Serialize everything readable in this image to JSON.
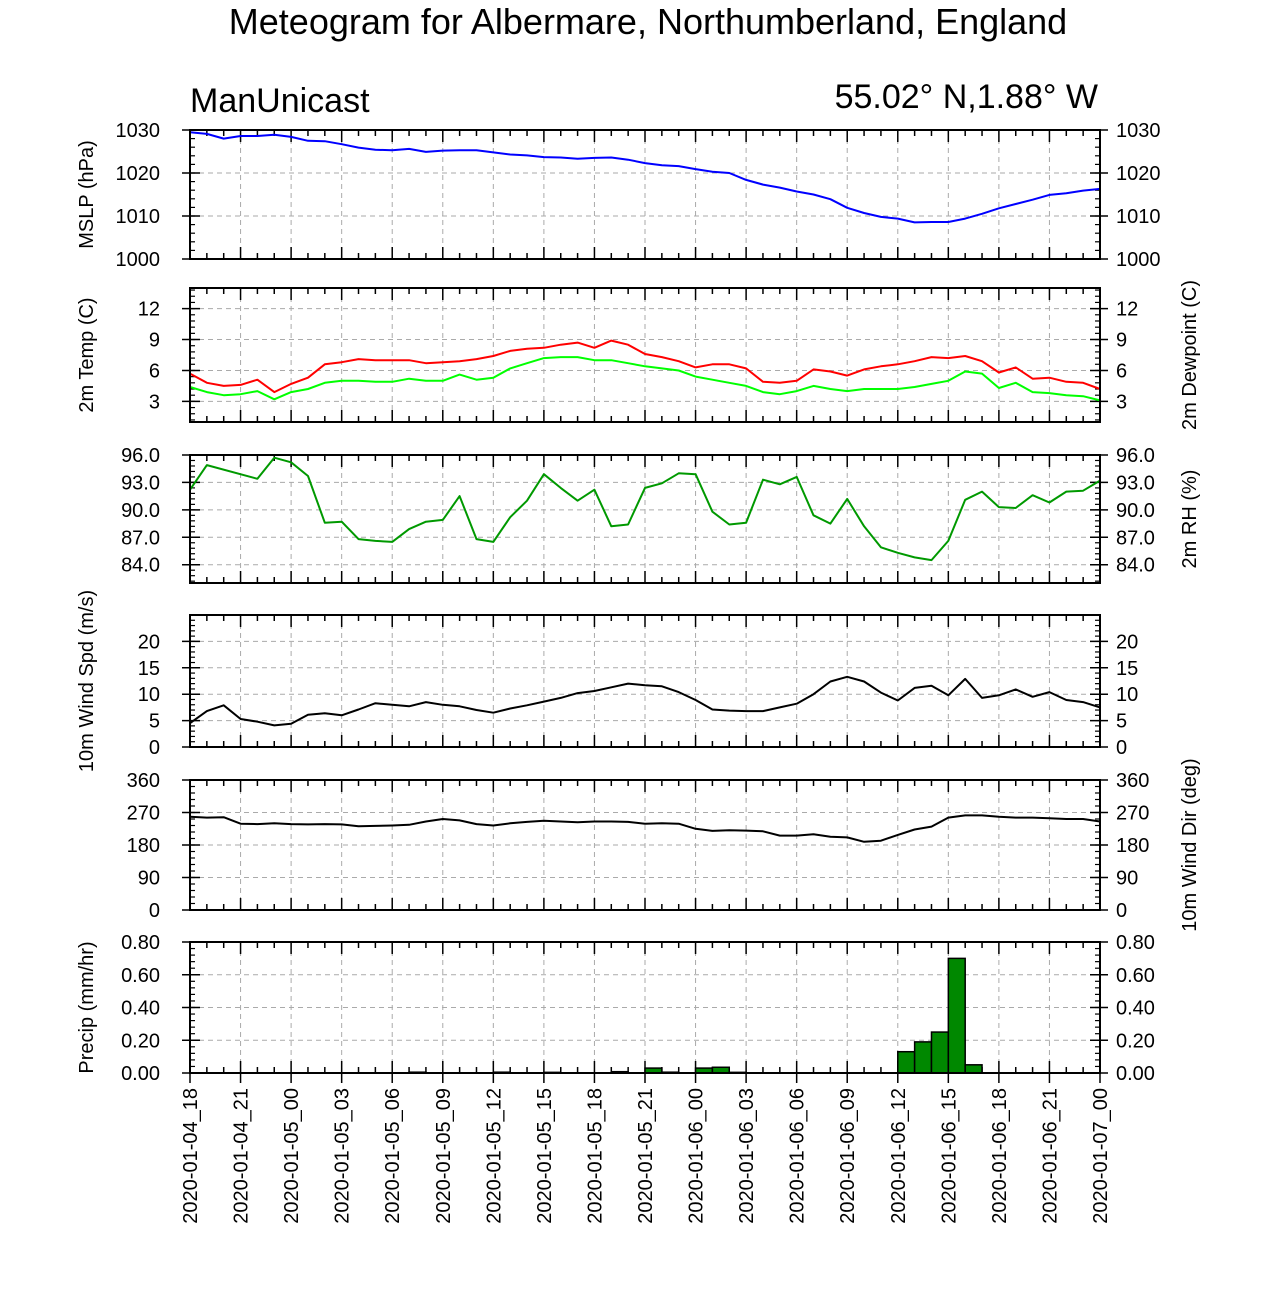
{
  "title": "Meteogram for Albermare, Northumberland, England",
  "model_label": "ManUnicast",
  "location_label": "55.02° N,1.88° W",
  "time_labels": [
    "2020-01-04_18",
    "2020-01-04_21",
    "2020-01-05_00",
    "2020-01-05_03",
    "2020-01-05_06",
    "2020-01-05_09",
    "2020-01-05_12",
    "2020-01-05_15",
    "2020-01-05_18",
    "2020-01-05_21",
    "2020-01-06_00",
    "2020-01-06_03",
    "2020-01-06_06",
    "2020-01-06_09",
    "2020-01-06_12",
    "2020-01-06_15",
    "2020-01-06_18",
    "2020-01-06_21",
    "2020-01-07_00"
  ],
  "colors": {
    "mslp": "#0000ff",
    "temp": "#ff0000",
    "dewpoint": "#00ff00",
    "rh": "#009900",
    "wind": "#000000",
    "precip_fill": "#008800",
    "grid": "#aaaaaa"
  },
  "chart_data": [
    {
      "type": "line",
      "ylabel_left": "MSLP (hPa)",
      "ylabel_right": "",
      "ylim": [
        1000,
        1030
      ],
      "ticks": [
        1000,
        1010,
        1020,
        1030
      ],
      "tick_labels": [
        "1000",
        "1010",
        "1020",
        "1030"
      ],
      "right_ticks": true,
      "x_hours": [
        0,
        1,
        2,
        3,
        4,
        5,
        6,
        7,
        8,
        9,
        10,
        11,
        12,
        13,
        14,
        15,
        16,
        17,
        18,
        19,
        20,
        21,
        22,
        23,
        24,
        25,
        26,
        27,
        28,
        29,
        30,
        31,
        32,
        33,
        34,
        35,
        36,
        37,
        38,
        39,
        40,
        41,
        42,
        43,
        44,
        45,
        46,
        47,
        48,
        49,
        50,
        51,
        52,
        53,
        54
      ],
      "series": [
        {
          "values": [
            1029.5,
            1029.1,
            1028.0,
            1028.6,
            1028.6,
            1028.9,
            1028.4,
            1027.5,
            1027.4,
            1026.7,
            1025.9,
            1025.4,
            1025.3,
            1025.6,
            1024.9,
            1025.2,
            1025.3,
            1025.3,
            1024.8,
            1024.3,
            1024.1,
            1023.7,
            1023.6,
            1023.3,
            1023.5,
            1023.6,
            1023.1,
            1022.3,
            1021.8,
            1021.6,
            1020.9,
            1020.3,
            1020.0,
            1018.4,
            1017.3,
            1016.6,
            1015.7,
            1015.0,
            1013.9,
            1011.9,
            1010.7,
            1009.8,
            1009.4,
            1008.5,
            1008.6,
            1008.6,
            1009.4,
            1010.5,
            1011.8,
            1012.8,
            1013.8,
            1014.9,
            1015.3,
            1015.9,
            1016.3
          ]
        }
      ]
    },
    {
      "type": "line",
      "ylabel_left": "2m Temp (C)",
      "ylabel_right": "2m Dewpoint (C)",
      "ylim": [
        1,
        14
      ],
      "ticks": [
        3,
        6,
        9,
        12
      ],
      "tick_labels": [
        "3",
        "6",
        "9",
        "12"
      ],
      "right_ticks": true,
      "x_hours": [
        0,
        1,
        2,
        3,
        4,
        5,
        6,
        7,
        8,
        9,
        10,
        11,
        12,
        13,
        14,
        15,
        16,
        17,
        18,
        19,
        20,
        21,
        22,
        23,
        24,
        25,
        26,
        27,
        28,
        29,
        30,
        31,
        32,
        33,
        34,
        35,
        36,
        37,
        38,
        39,
        40,
        41,
        42,
        43,
        44,
        45,
        46,
        47,
        48,
        49,
        50,
        51,
        52,
        53,
        54
      ],
      "series": [
        {
          "values": [
            5.7,
            4.8,
            4.5,
            4.6,
            5.1,
            3.9,
            4.7,
            5.3,
            6.6,
            6.8,
            7.1,
            7.0,
            7.0,
            7.0,
            6.7,
            6.8,
            6.9,
            7.1,
            7.4,
            7.9,
            8.1,
            8.2,
            8.5,
            8.7,
            8.2,
            8.9,
            8.5,
            7.6,
            7.3,
            6.9,
            6.3,
            6.6,
            6.6,
            6.2,
            4.9,
            4.8,
            5.0,
            6.1,
            5.9,
            5.5,
            6.1,
            6.4,
            6.6,
            6.9,
            7.3,
            7.2,
            7.4,
            6.9,
            5.8,
            6.3,
            5.2,
            5.3,
            4.9,
            4.8,
            4.2
          ]
        },
        {
          "values": [
            4.4,
            3.9,
            3.6,
            3.7,
            4.0,
            3.2,
            3.9,
            4.2,
            4.8,
            5.0,
            5.0,
            4.9,
            4.9,
            5.2,
            5.0,
            5.0,
            5.6,
            5.1,
            5.3,
            6.2,
            6.7,
            7.2,
            7.3,
            7.3,
            7.0,
            7.0,
            6.7,
            6.4,
            6.2,
            6.0,
            5.4,
            5.1,
            4.8,
            4.5,
            3.9,
            3.7,
            4.0,
            4.5,
            4.2,
            4.0,
            4.2,
            4.2,
            4.2,
            4.4,
            4.7,
            5.0,
            5.9,
            5.7,
            4.3,
            4.8,
            3.9,
            3.8,
            3.6,
            3.5,
            3.1
          ]
        }
      ]
    },
    {
      "type": "line",
      "ylabel_left": "",
      "ylabel_right": "2m RH (%)",
      "ylim": [
        82,
        96
      ],
      "ticks": [
        84,
        87,
        90,
        93,
        96
      ],
      "tick_labels": [
        "84.0",
        "87.0",
        "90.0",
        "93.0",
        "96.0"
      ],
      "right_ticks": true,
      "x_hours": [
        0,
        1,
        4,
        5,
        6,
        7,
        8,
        9,
        10,
        11,
        12,
        13,
        14,
        15,
        16,
        17,
        18,
        19,
        20,
        21,
        22,
        23,
        24,
        25,
        26,
        27,
        28,
        29,
        30,
        31,
        32,
        33,
        34,
        35,
        36,
        37,
        38,
        39,
        40,
        41,
        42,
        43,
        44,
        45,
        46,
        47,
        48,
        49,
        50,
        51,
        52,
        53,
        54
      ],
      "series": [
        {
          "values": [
            92.2,
            94.9,
            93.4,
            95.7,
            95.2,
            93.7,
            88.6,
            88.7,
            86.8,
            86.6,
            86.5,
            87.9,
            88.7,
            88.9,
            91.5,
            86.8,
            86.5,
            89.2,
            91.0,
            93.9,
            92.4,
            91.0,
            92.2,
            88.2,
            88.4,
            92.4,
            92.9,
            94.0,
            93.9,
            89.8,
            88.4,
            88.6,
            93.3,
            92.8,
            93.6,
            89.4,
            88.5,
            91.2,
            88.2,
            85.9,
            85.3,
            84.8,
            84.5,
            86.6,
            91.1,
            92.0,
            90.3,
            90.2,
            91.6,
            90.8,
            92.0,
            92.1,
            93.2
          ]
        }
      ]
    },
    {
      "type": "line",
      "ylabel_left": "10m Wind Spd (m/s)",
      "ylabel_right": "",
      "ylim": [
        0,
        25
      ],
      "ticks": [
        0,
        5,
        10,
        15,
        20
      ],
      "tick_labels": [
        "0",
        "5",
        "10",
        "15",
        "20"
      ],
      "right_ticks": true,
      "x_hours": [
        0,
        1,
        2,
        3,
        4,
        5,
        6,
        7,
        8,
        9,
        10,
        11,
        12,
        13,
        14,
        15,
        16,
        17,
        18,
        19,
        20,
        21,
        22,
        23,
        24,
        25,
        26,
        27,
        28,
        29,
        30,
        31,
        32,
        33,
        34,
        35,
        36,
        37,
        38,
        39,
        40,
        41,
        42,
        43,
        44,
        45,
        46,
        47,
        48,
        49,
        50,
        51,
        52,
        53,
        54
      ],
      "series": [
        {
          "values": [
            4.5,
            6.8,
            7.9,
            5.3,
            4.8,
            4.1,
            4.4,
            6.1,
            6.4,
            6.0,
            7.1,
            8.3,
            8.0,
            7.7,
            8.5,
            8.0,
            7.7,
            7.0,
            6.5,
            7.3,
            7.9,
            8.6,
            9.3,
            10.2,
            10.6,
            11.3,
            12.0,
            11.7,
            11.5,
            10.4,
            8.9,
            7.1,
            6.9,
            6.8,
            6.8,
            7.5,
            8.2,
            10.0,
            12.4,
            13.3,
            12.4,
            10.3,
            8.8,
            11.2,
            11.6,
            9.8,
            12.9,
            9.3,
            9.8,
            10.9,
            9.5,
            10.4,
            8.9,
            8.5,
            7.5
          ]
        }
      ]
    },
    {
      "type": "line",
      "ylabel_left": "",
      "ylabel_right": "10m Wind Dir (deg)",
      "ylim": [
        0,
        360
      ],
      "ticks": [
        0,
        90,
        180,
        270,
        360
      ],
      "tick_labels": [
        "0",
        "90",
        "180",
        "270",
        "360"
      ],
      "right_ticks": true,
      "x_hours": [
        0,
        1,
        2,
        3,
        4,
        5,
        6,
        7,
        8,
        9,
        10,
        11,
        12,
        13,
        14,
        15,
        16,
        17,
        18,
        19,
        20,
        21,
        22,
        23,
        24,
        25,
        26,
        27,
        28,
        29,
        30,
        31,
        32,
        33,
        34,
        35,
        36,
        37,
        38,
        39,
        40,
        41,
        42,
        43,
        44,
        45,
        46,
        47,
        48,
        49,
        50,
        51,
        52,
        53,
        54
      ],
      "series": [
        {
          "values": [
            258,
            256,
            257,
            239,
            238,
            240,
            238,
            237,
            238,
            237,
            232,
            233,
            234,
            236,
            245,
            252,
            248,
            238,
            234,
            240,
            244,
            247,
            245,
            243,
            245,
            245,
            244,
            239,
            240,
            239,
            225,
            219,
            221,
            220,
            218,
            206,
            206,
            210,
            203,
            201,
            189,
            192,
            208,
            223,
            231,
            256,
            262,
            262,
            258,
            256,
            256,
            254,
            252,
            252,
            245
          ]
        }
      ]
    },
    {
      "type": "bar",
      "ylabel_left": "Precip (mm/hr)",
      "ylabel_right": "",
      "ylim": [
        0,
        0.8
      ],
      "ticks": [
        0,
        0.2,
        0.4,
        0.6,
        0.8
      ],
      "tick_labels": [
        "0.00",
        "0.20",
        "0.40",
        "0.60",
        "0.80"
      ],
      "right_ticks": true,
      "bars": [
        {
          "h": 13,
          "v": 0.005
        },
        {
          "h": 18,
          "v": 0.005
        },
        {
          "h": 21,
          "v": 0.004
        },
        {
          "h": 25,
          "v": 0.008
        },
        {
          "h": 27,
          "v": 0.03
        },
        {
          "h": 28,
          "v": 0.005
        },
        {
          "h": 30,
          "v": 0.03
        },
        {
          "h": 31,
          "v": 0.035
        },
        {
          "h": 32,
          "v": 0.004
        },
        {
          "h": 42,
          "v": 0.13
        },
        {
          "h": 43,
          "v": 0.19
        },
        {
          "h": 44,
          "v": 0.25
        },
        {
          "h": 45,
          "v": 0.7
        },
        {
          "h": 46,
          "v": 0.05
        }
      ]
    }
  ]
}
